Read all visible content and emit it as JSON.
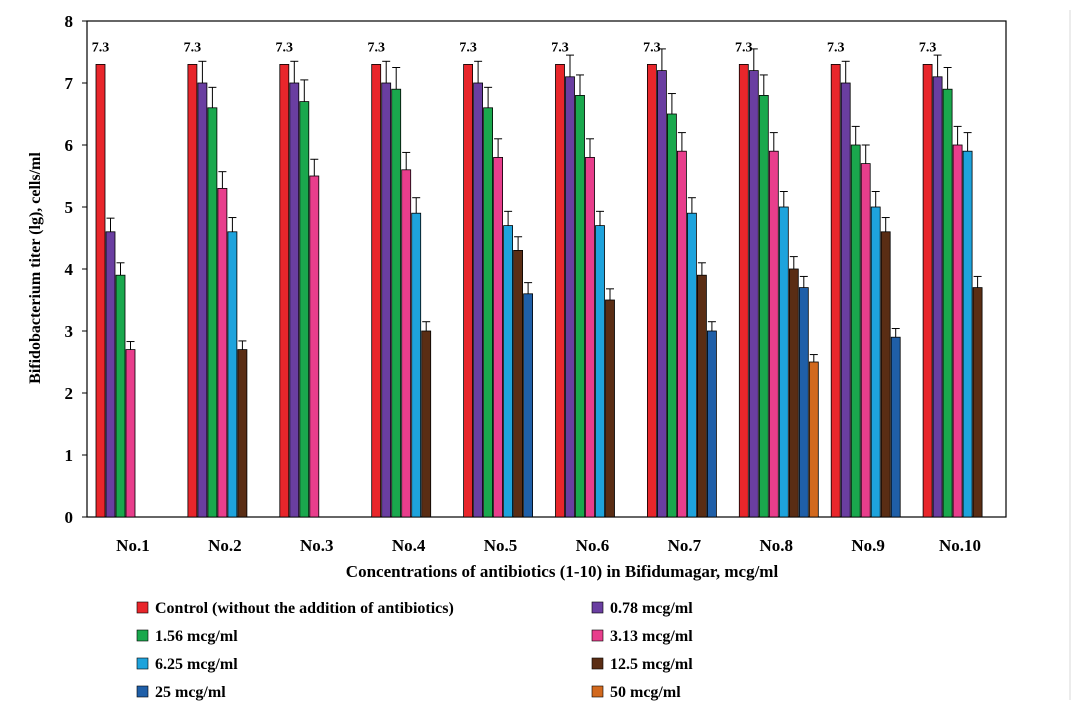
{
  "chart_data": {
    "type": "bar",
    "ylabel": "Bifidobacterium  titer (lg),  cells/ml",
    "xlabel": "Concentrations  of antibiotics (1-10) in Bifidumagar,  mcg/ml",
    "ylim": [
      0,
      8
    ],
    "yticks": [
      "0",
      "1",
      "2",
      "3",
      "4",
      "5",
      "6",
      "7",
      "8"
    ],
    "categories": [
      "No.1",
      "No.2",
      "No.3",
      "No.4",
      "No.5",
      "No.6",
      "No.7",
      "No.8",
      "No.9",
      "No.10"
    ],
    "legend_position": "bottom",
    "series": [
      {
        "name": "Control (without the addition of antibiotics)",
        "color": "#e8262b",
        "values": [
          7.3,
          7.3,
          7.3,
          7.3,
          7.3,
          7.3,
          7.3,
          7.3,
          7.3,
          7.3
        ],
        "errors": [
          0,
          0,
          0,
          0,
          0,
          0,
          0,
          0,
          0,
          0
        ]
      },
      {
        "name": "0.78 mcg/ml",
        "color": "#6a3ea1",
        "values": [
          4.6,
          7.0,
          7.0,
          7.0,
          7.0,
          7.1,
          7.2,
          7.2,
          7.0,
          7.1
        ],
        "errors": [
          0.22,
          0.35,
          0.35,
          0.35,
          0.35,
          0.35,
          0.35,
          0.35,
          0.35,
          0.35
        ]
      },
      {
        "name": "1.56 mcg/ml",
        "color": "#1aa84d",
        "values": [
          3.9,
          6.6,
          6.7,
          6.9,
          6.6,
          6.8,
          6.5,
          6.8,
          6.0,
          6.9
        ],
        "errors": [
          0.2,
          0.33,
          0.35,
          0.35,
          0.33,
          0.33,
          0.33,
          0.33,
          0.3,
          0.35
        ]
      },
      {
        "name": "3.13 mcg/ml",
        "color": "#e83e8c",
        "values": [
          2.7,
          5.3,
          5.5,
          5.6,
          5.8,
          5.8,
          5.9,
          5.9,
          5.7,
          6.0
        ],
        "errors": [
          0.13,
          0.27,
          0.27,
          0.28,
          0.3,
          0.3,
          0.3,
          0.3,
          0.3,
          0.3
        ]
      },
      {
        "name": "6.25 mcg/ml",
        "color": "#1ea3dc",
        "values": [
          null,
          4.6,
          null,
          4.9,
          4.7,
          4.7,
          4.9,
          5.0,
          5.0,
          5.9
        ],
        "errors": [
          0,
          0.23,
          0,
          0.25,
          0.23,
          0.23,
          0.25,
          0.25,
          0.25,
          0.3
        ]
      },
      {
        "name": "12.5 mcg/ml",
        "color": "#5a2d14",
        "values": [
          null,
          2.7,
          null,
          3.0,
          4.3,
          3.5,
          3.9,
          4.0,
          4.6,
          3.7
        ],
        "errors": [
          0,
          0.14,
          0,
          0.15,
          0.22,
          0.18,
          0.2,
          0.2,
          0.23,
          0.18
        ]
      },
      {
        "name": "25 mcg/ml",
        "color": "#1f5fa8",
        "values": [
          null,
          null,
          null,
          null,
          3.6,
          null,
          3.0,
          3.7,
          2.9,
          null
        ],
        "errors": [
          0,
          0,
          0,
          0,
          0.18,
          0,
          0.15,
          0.18,
          0.14,
          0
        ]
      },
      {
        "name": "50 mcg/ml",
        "color": "#d2691e",
        "values": [
          null,
          null,
          null,
          null,
          null,
          null,
          null,
          2.5,
          null,
          null
        ],
        "errors": [
          0,
          0,
          0,
          0,
          0,
          0,
          0,
          0.12,
          0,
          0
        ]
      }
    ],
    "control_label": "7.3"
  }
}
